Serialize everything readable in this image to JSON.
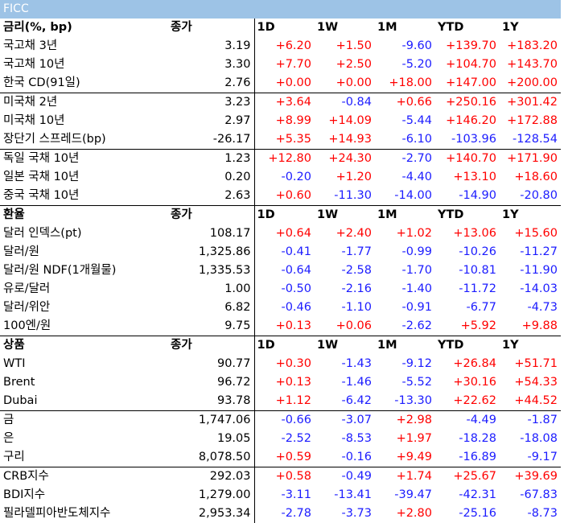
{
  "title": "FICC",
  "sections": [
    {
      "header": {
        "label": "금리(%, bp)",
        "close": "종가",
        "d1": "1D",
        "w1": "1W",
        "m1": "1M",
        "ytd": "YTD",
        "y1": "1Y"
      },
      "groups": [
        [
          {
            "name": "국고채 3년",
            "close": "3.19",
            "d1": "+6.20",
            "w1": "+1.50",
            "m1": "-9.60",
            "ytd": "+139.70",
            "y1": "+183.20"
          },
          {
            "name": "국고채 10년",
            "close": "3.30",
            "d1": "+7.70",
            "w1": "+2.50",
            "m1": "-5.20",
            "ytd": "+104.70",
            "y1": "+143.70"
          },
          {
            "name": "한국 CD(91일)",
            "close": "2.76",
            "d1": "+0.00",
            "w1": "+0.00",
            "m1": "+18.00",
            "ytd": "+147.00",
            "y1": "+200.00"
          }
        ],
        [
          {
            "name": "미국채 2년",
            "close": "3.23",
            "d1": "+3.64",
            "w1": "-0.84",
            "m1": "+0.66",
            "ytd": "+250.16",
            "y1": "+301.42"
          },
          {
            "name": "미국채 10년",
            "close": "2.97",
            "d1": "+8.99",
            "w1": "+14.09",
            "m1": "-5.44",
            "ytd": "+146.20",
            "y1": "+172.88"
          },
          {
            "name": "장단기 스프레드(bp)",
            "close": "-26.17",
            "d1": "+5.35",
            "w1": "+14.93",
            "m1": "-6.10",
            "ytd": "-103.96",
            "y1": "-128.54"
          }
        ],
        [
          {
            "name": "독일 국채 10년",
            "close": "1.23",
            "d1": "+12.80",
            "w1": "+24.30",
            "m1": "-2.70",
            "ytd": "+140.70",
            "y1": "+171.90"
          },
          {
            "name": "일본 국채 10년",
            "close": "0.20",
            "d1": "-0.20",
            "w1": "+1.20",
            "m1": "-4.40",
            "ytd": "+13.10",
            "y1": "+18.60"
          },
          {
            "name": "중국 국채 10년",
            "close": "2.63",
            "d1": "+0.60",
            "w1": "-11.30",
            "m1": "-14.00",
            "ytd": "-14.90",
            "y1": "-20.80"
          }
        ]
      ]
    },
    {
      "header": {
        "label": "환율",
        "close": "종가",
        "d1": "1D",
        "w1": "1W",
        "m1": "1M",
        "ytd": "YTD",
        "y1": "1Y"
      },
      "groups": [
        [
          {
            "name": "달러 인덱스(pt)",
            "close": "108.17",
            "d1": "+0.64",
            "w1": "+2.40",
            "m1": "+1.02",
            "ytd": "+13.06",
            "y1": "+15.60"
          },
          {
            "name": "달러/원",
            "close": "1,325.86",
            "d1": "-0.41",
            "w1": "-1.77",
            "m1": "-0.99",
            "ytd": "-10.26",
            "y1": "-11.27"
          },
          {
            "name": "달러/원 NDF(1개월물)",
            "close": "1,335.53",
            "d1": "-0.64",
            "w1": "-2.58",
            "m1": "-1.70",
            "ytd": "-10.81",
            "y1": "-11.90"
          },
          {
            "name": "유로/달러",
            "close": "1.00",
            "d1": "-0.50",
            "w1": "-2.16",
            "m1": "-1.40",
            "ytd": "-11.72",
            "y1": "-14.03"
          },
          {
            "name": "달러/위안",
            "close": "6.82",
            "d1": "-0.46",
            "w1": "-1.10",
            "m1": "-0.91",
            "ytd": "-6.77",
            "y1": "-4.73"
          },
          {
            "name": "100엔/원",
            "close": "9.75",
            "d1": "+0.13",
            "w1": "+0.06",
            "m1": "-2.62",
            "ytd": "+5.92",
            "y1": "+9.88"
          }
        ]
      ]
    },
    {
      "header": {
        "label": "상품",
        "close": "종가",
        "d1": "1D",
        "w1": "1W",
        "m1": "1M",
        "ytd": "YTD",
        "y1": "1Y"
      },
      "groups": [
        [
          {
            "name": "WTI",
            "close": "90.77",
            "d1": "+0.30",
            "w1": "-1.43",
            "m1": "-9.12",
            "ytd": "+26.84",
            "y1": "+51.71"
          },
          {
            "name": "Brent",
            "close": "96.72",
            "d1": "+0.13",
            "w1": "-1.46",
            "m1": "-5.52",
            "ytd": "+30.16",
            "y1": "+54.33"
          },
          {
            "name": "Dubai",
            "close": "93.78",
            "d1": "+1.12",
            "w1": "-6.42",
            "m1": "-13.30",
            "ytd": "+22.62",
            "y1": "+44.52"
          }
        ],
        [
          {
            "name": "금",
            "close": "1,747.06",
            "d1": "-0.66",
            "w1": "-3.07",
            "m1": "+2.98",
            "ytd": "-4.49",
            "y1": "-1.87"
          },
          {
            "name": "은",
            "close": "19.05",
            "d1": "-2.52",
            "w1": "-8.53",
            "m1": "+1.97",
            "ytd": "-18.28",
            "y1": "-18.08"
          },
          {
            "name": "구리",
            "close": "8,078.50",
            "d1": "+0.59",
            "w1": "-0.16",
            "m1": "+9.49",
            "ytd": "-16.89",
            "y1": "-9.17"
          }
        ],
        [
          {
            "name": "CRB지수",
            "close": "292.03",
            "d1": "+0.58",
            "w1": "-0.49",
            "m1": "+1.74",
            "ytd": "+25.67",
            "y1": "+39.69"
          },
          {
            "name": "BDI지수",
            "close": "1,279.00",
            "d1": "-3.11",
            "w1": "-13.41",
            "m1": "-39.47",
            "ytd": "-42.31",
            "y1": "-67.83"
          },
          {
            "name": "필라델피아반도체지수",
            "close": "2,953.34",
            "d1": "-2.78",
            "w1": "-3.73",
            "m1": "+2.80",
            "ytd": "-25.16",
            "y1": "-8.73"
          }
        ]
      ]
    }
  ],
  "colors": {
    "positive": "#ff0000",
    "negative": "#1c1cff",
    "title_bar": "#9dc3e6"
  }
}
